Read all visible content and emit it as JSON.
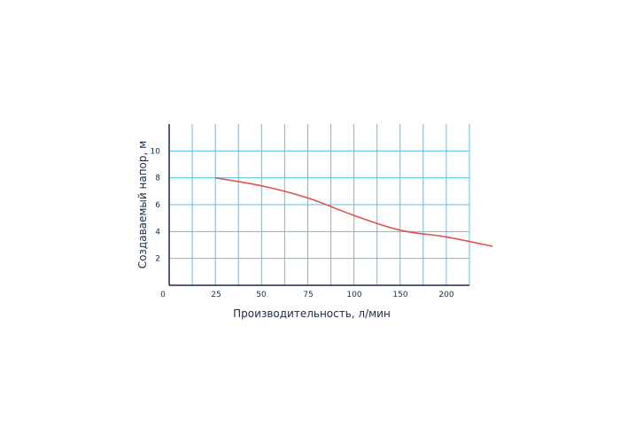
{
  "chart_data": {
    "type": "line",
    "xlabel": "Производительность, л/мин",
    "ylabel": "Создаваемый напор, м",
    "x_ticks": [
      "0",
      "25",
      "50",
      "75",
      "100",
      "150",
      "200"
    ],
    "y_ticks": [
      "2",
      "4",
      "6",
      "8",
      "10"
    ],
    "grid": true,
    "series": [
      {
        "x": [
          25,
          50,
          75,
          100,
          125,
          150,
          175
        ],
        "y": [
          8.0,
          7.4,
          6.5,
          5.2,
          4.1,
          3.6,
          2.9
        ]
      }
    ],
    "colors": {
      "grid": "#55c4e8",
      "axis": "#1c2b44",
      "curve": "#e0524b",
      "text": "#1c2b44"
    }
  }
}
